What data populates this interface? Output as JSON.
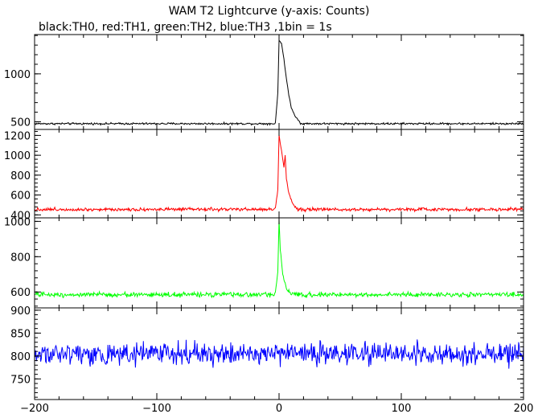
{
  "title": "WAM T2 Lightcurve (y-axis: Counts)",
  "subtitle": "black:TH0, red:TH1, green:TH2, blue:TH3 ,1bin = 1s",
  "chart_data": {
    "type": "line",
    "x_range": [
      -200,
      200
    ],
    "x_ticks": [
      -200,
      -100,
      0,
      100,
      200
    ],
    "x_tick_labels": [
      "−200",
      "−100",
      "0",
      "100",
      "200"
    ],
    "grid": false,
    "panels": [
      {
        "name": "TH0",
        "color": "#000000",
        "ylim": [
          420,
          1410
        ],
        "y_ticks": [
          500,
          1000
        ],
        "y_tick_labels": [
          "500",
          "1000"
        ],
        "baseline": 480,
        "noise": 15,
        "peak": [
          [
            -3,
            490
          ],
          [
            -1,
            800
          ],
          [
            0,
            1350
          ],
          [
            2,
            1320
          ],
          [
            4,
            1150
          ],
          [
            6,
            950
          ],
          [
            8,
            780
          ],
          [
            10,
            650
          ],
          [
            13,
            560
          ],
          [
            17,
            500
          ]
        ]
      },
      {
        "name": "TH1",
        "color": "#ff0000",
        "ylim": [
          370,
          1260
        ],
        "y_ticks": [
          400,
          600,
          800,
          1000,
          1200
        ],
        "y_tick_labels": [
          "400",
          "600",
          "800",
          "1000",
          "1200"
        ],
        "baseline": 455,
        "noise": 25,
        "peak": [
          [
            -3,
            470
          ],
          [
            -1,
            650
          ],
          [
            0,
            1200
          ],
          [
            2,
            1050
          ],
          [
            4,
            880
          ],
          [
            5,
            1000
          ],
          [
            6,
            760
          ],
          [
            8,
            620
          ],
          [
            11,
            520
          ],
          [
            14,
            470
          ]
        ]
      },
      {
        "name": "TH2",
        "color": "#00ff00",
        "ylim": [
          510,
          1020
        ],
        "y_ticks": [
          600,
          800,
          1000
        ],
        "y_tick_labels": [
          "600",
          "800",
          "1000"
        ],
        "baseline": 585,
        "noise": 20,
        "peak": [
          [
            -3,
            600
          ],
          [
            -1,
            720
          ],
          [
            0,
            1010
          ],
          [
            1,
            840
          ],
          [
            3,
            700
          ],
          [
            6,
            620
          ],
          [
            9,
            595
          ]
        ]
      },
      {
        "name": "TH3",
        "color": "#0000ff",
        "ylim": [
          705,
          905
        ],
        "y_ticks": [
          750,
          800,
          850,
          900
        ],
        "y_tick_labels": [
          "750",
          "800",
          "850",
          "900"
        ],
        "baseline": 805,
        "noise": 35,
        "peak": []
      }
    ]
  }
}
